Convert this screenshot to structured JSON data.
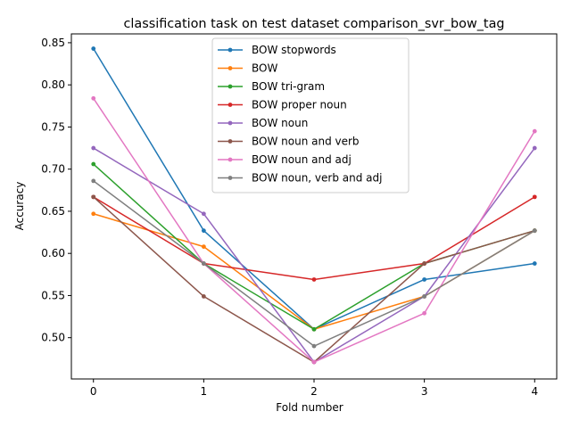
{
  "chart_data": {
    "type": "line",
    "title": "classification task on test dataset comparison_svr_bow_tag",
    "xlabel": "Fold number",
    "ylabel": "Accuracy",
    "x": [
      0,
      1,
      2,
      3,
      4
    ],
    "xticks": [
      "0",
      "1",
      "2",
      "3",
      "4"
    ],
    "xlim": [
      -0.2,
      4.2
    ],
    "ylim": [
      0.451,
      0.8605
    ],
    "yticks": [
      "0.50",
      "0.55",
      "0.60",
      "0.65",
      "0.70",
      "0.75",
      "0.80",
      "0.85"
    ],
    "ytick_values": [
      0.5,
      0.55,
      0.6,
      0.65,
      0.7,
      0.75,
      0.8,
      0.85
    ],
    "grid": false,
    "legend_position": "top-center",
    "series": [
      {
        "name": "BOW stopwords",
        "color": "#1f77b4",
        "values": [
          0.843,
          0.627,
          0.51,
          0.569,
          0.588
        ]
      },
      {
        "name": "BOW",
        "color": "#ff7f0e",
        "values": [
          0.647,
          0.608,
          0.51,
          0.549,
          0.627
        ]
      },
      {
        "name": "BOW tri-gram",
        "color": "#2ca02c",
        "values": [
          0.706,
          0.588,
          0.51,
          0.588,
          0.627
        ]
      },
      {
        "name": "BOW proper noun",
        "color": "#d62728",
        "values": [
          0.667,
          0.588,
          0.569,
          0.588,
          0.667
        ]
      },
      {
        "name": "BOW noun",
        "color": "#9467bd",
        "values": [
          0.725,
          0.647,
          0.471,
          0.549,
          0.725
        ]
      },
      {
        "name": "BOW noun and verb",
        "color": "#8c564b",
        "values": [
          0.667,
          0.549,
          0.471,
          0.588,
          0.627
        ]
      },
      {
        "name": "BOW noun and adj",
        "color": "#e377c2",
        "values": [
          0.784,
          0.588,
          0.471,
          0.529,
          0.745
        ]
      },
      {
        "name": "BOW noun, verb and adj",
        "color": "#7f7f7f",
        "values": [
          0.686,
          0.588,
          0.49,
          0.549,
          0.627
        ]
      }
    ]
  }
}
